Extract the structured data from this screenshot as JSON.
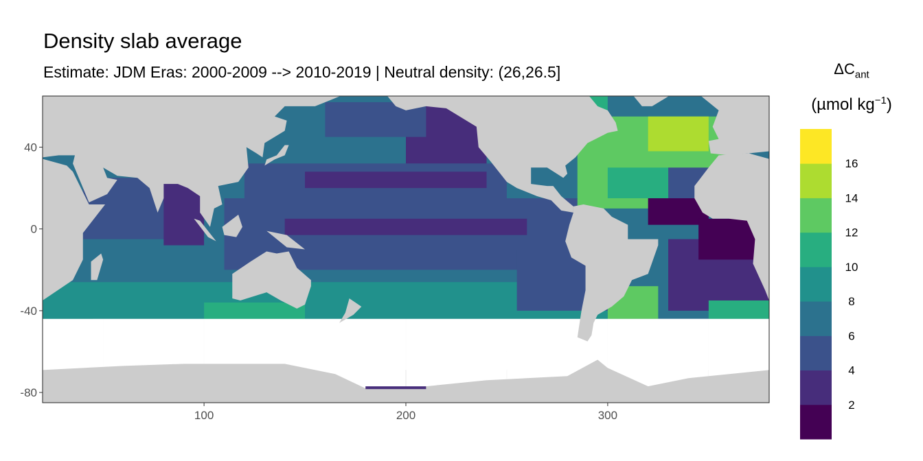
{
  "title": "Density slab average",
  "subtitle": "Estimate: JDM Eras: 2000-2009 --> 2010-2019 | Neutral density: (26,26.5]",
  "legend": {
    "title_symbol": "ΔC",
    "title_subscript": "ant",
    "unit_prefix": "(µmol kg",
    "unit_exponent": "−1",
    "unit_suffix": ")",
    "breaks": [
      "2",
      "4",
      "6",
      "8",
      "10",
      "12",
      "14",
      "16"
    ],
    "colors": [
      "#440154",
      "#472d7b",
      "#3b528b",
      "#2c728e",
      "#21918c",
      "#28ae80",
      "#5ec962",
      "#addc30",
      "#fde725"
    ]
  },
  "chart_data": {
    "type": "heatmap",
    "title": "Density slab average",
    "xlim": [
      20,
      380
    ],
    "ylim": [
      -85,
      65
    ],
    "x_ticks": [
      "100",
      "200",
      "300"
    ],
    "y_ticks": [
      "-80",
      "-40",
      "0",
      "40"
    ],
    "land_color": "#cccccc",
    "grid": true,
    "legend_position": "right",
    "color_scale": "viridis, binned by 2 (0-18)"
  }
}
